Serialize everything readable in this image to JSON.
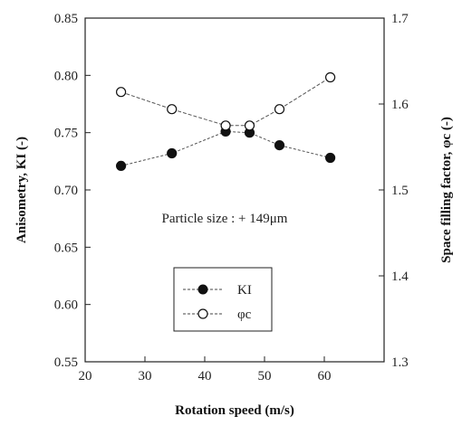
{
  "chart_data": {
    "type": "line",
    "x": [
      26,
      34.5,
      43.5,
      47.5,
      52.5,
      61
    ],
    "xlabel": "Rotation speed (m/s)",
    "ylabel_left": "Anisometry, KI (-)",
    "ylabel_right": "Space filling factor, φc (-)",
    "xlim": [
      20,
      70
    ],
    "ylim_left": [
      0.55,
      0.85
    ],
    "ylim_right": [
      1.3,
      1.7
    ],
    "xticks": [
      "20",
      "30",
      "40",
      "50",
      "60"
    ],
    "yticks_left": [
      "0.55",
      "0.60",
      "0.65",
      "0.70",
      "0.75",
      "0.80",
      "0.85"
    ],
    "yticks_right": [
      "1.3",
      "1.4",
      "1.5",
      "1.6",
      "1.7"
    ],
    "grid": false,
    "legend_position": "bottom-center",
    "annotation": "Particle size : + 149μm",
    "series": [
      {
        "name": "KI",
        "axis": "left",
        "marker": "filled-circle",
        "values": [
          0.721,
          0.732,
          0.751,
          0.75,
          0.739,
          0.728
        ]
      },
      {
        "name": "φc",
        "axis": "right",
        "marker": "open-circle",
        "values": [
          1.614,
          1.594,
          1.575,
          1.575,
          1.594,
          1.631
        ]
      }
    ]
  }
}
